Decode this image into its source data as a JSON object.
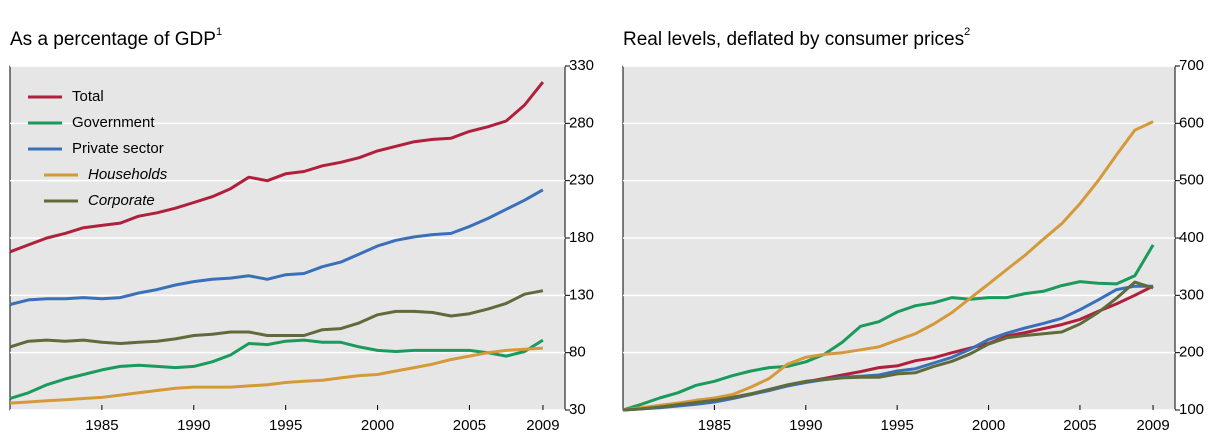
{
  "chart_data": [
    {
      "type": "line",
      "title": "As a percentage of GDP",
      "title_note": "1",
      "x": [
        1980,
        1981,
        1982,
        1983,
        1984,
        1985,
        1986,
        1987,
        1988,
        1989,
        1990,
        1991,
        1992,
        1993,
        1994,
        1995,
        1996,
        1997,
        1998,
        1999,
        2000,
        2001,
        2002,
        2003,
        2004,
        2005,
        2006,
        2007,
        2008,
        2009
      ],
      "xlim": [
        1980,
        2010.2
      ],
      "xticks": [
        1985,
        1990,
        1995,
        2000,
        2005,
        2009
      ],
      "ylim": [
        30,
        330
      ],
      "yticks": [
        30,
        80,
        130,
        180,
        230,
        280,
        330
      ],
      "grid": true,
      "legend": "upper left",
      "series": [
        {
          "name": "Total",
          "color": "#b01f3c",
          "values": [
            168,
            174,
            180,
            184,
            189,
            191,
            193,
            199,
            202,
            206,
            211,
            216,
            223,
            233,
            230,
            236,
            238,
            243,
            246,
            250,
            256,
            260,
            264,
            266,
            267,
            273,
            277,
            282,
            296,
            316
          ]
        },
        {
          "name": "Government",
          "color": "#1a9a5c",
          "values": [
            40,
            45,
            52,
            57,
            61,
            65,
            68,
            69,
            68,
            67,
            68,
            72,
            78,
            88,
            87,
            90,
            91,
            89,
            89,
            85,
            82,
            81,
            82,
            82,
            82,
            82,
            80,
            77,
            81,
            91
          ]
        },
        {
          "name": "Private sector",
          "color": "#3a6fba",
          "values": [
            122,
            126,
            127,
            127,
            128,
            127,
            128,
            132,
            135,
            139,
            142,
            144,
            145,
            147,
            144,
            148,
            149,
            155,
            159,
            166,
            173,
            178,
            181,
            183,
            184,
            190,
            197,
            205,
            213,
            222
          ]
        },
        {
          "name": "Households",
          "italic": true,
          "color": "#d49a3a",
          "values": [
            36,
            37,
            38,
            39,
            40,
            41,
            43,
            45,
            47,
            49,
            50,
            50,
            50,
            51,
            52,
            54,
            55,
            56,
            58,
            60,
            61,
            64,
            67,
            70,
            74,
            77,
            80,
            82,
            83,
            84
          ]
        },
        {
          "name": "Corporate",
          "italic": true,
          "color": "#5f6b3a",
          "values": [
            85,
            90,
            91,
            90,
            91,
            89,
            88,
            89,
            90,
            92,
            95,
            96,
            98,
            98,
            95,
            95,
            95,
            100,
            101,
            106,
            113,
            116,
            116,
            115,
            112,
            114,
            118,
            123,
            131,
            134
          ]
        }
      ]
    },
    {
      "type": "line",
      "title": "Real levels, deflated by consumer prices",
      "title_note": "2",
      "x": [
        1980,
        1981,
        1982,
        1983,
        1984,
        1985,
        1986,
        1987,
        1988,
        1989,
        1990,
        1991,
        1992,
        1993,
        1994,
        1995,
        1996,
        1997,
        1998,
        1999,
        2000,
        2001,
        2002,
        2003,
        2004,
        2005,
        2006,
        2007,
        2008,
        2009
      ],
      "xlim": [
        1980,
        2010.2
      ],
      "xticks": [
        1985,
        1990,
        1995,
        2000,
        2005,
        2009
      ],
      "ylim": [
        100,
        700
      ],
      "yticks": [
        100,
        200,
        300,
        400,
        500,
        600,
        700
      ],
      "grid": true,
      "legend": false,
      "series": [
        {
          "color": "#b01f3c",
          "values": [
            100,
            103,
            107,
            111,
            115,
            118,
            122,
            128,
            135,
            142,
            149,
            155,
            161,
            167,
            174,
            177,
            186,
            191,
            200,
            208,
            216,
            229,
            235,
            242,
            249,
            258,
            272,
            285,
            300,
            316
          ]
        },
        {
          "color": "#1a9a5c",
          "values": [
            100,
            110,
            121,
            130,
            143,
            150,
            160,
            168,
            174,
            176,
            184,
            197,
            218,
            246,
            254,
            271,
            282,
            287,
            296,
            293,
            296,
            296,
            303,
            307,
            317,
            324,
            321,
            320,
            334,
            388
          ]
        },
        {
          "color": "#3a6fba",
          "values": [
            100,
            102,
            104,
            107,
            110,
            114,
            120,
            127,
            134,
            142,
            148,
            153,
            157,
            159,
            161,
            168,
            172,
            182,
            192,
            206,
            223,
            234,
            243,
            251,
            260,
            275,
            292,
            310,
            316,
            316
          ]
        },
        {
          "color": "#d49a3a",
          "values": [
            100,
            104,
            108,
            112,
            117,
            121,
            127,
            140,
            155,
            180,
            192,
            197,
            200,
            205,
            210,
            222,
            233,
            250,
            270,
            295,
            320,
            345,
            370,
            398,
            425,
            460,
            500,
            545,
            588,
            603
          ]
        },
        {
          "color": "#5f6b3a",
          "values": [
            100,
            102,
            105,
            109,
            113,
            117,
            122,
            128,
            136,
            144,
            150,
            153,
            156,
            157,
            157,
            163,
            165,
            176,
            185,
            198,
            215,
            226,
            230,
            233,
            236,
            250,
            270,
            295,
            323,
            313
          ]
        }
      ]
    }
  ]
}
